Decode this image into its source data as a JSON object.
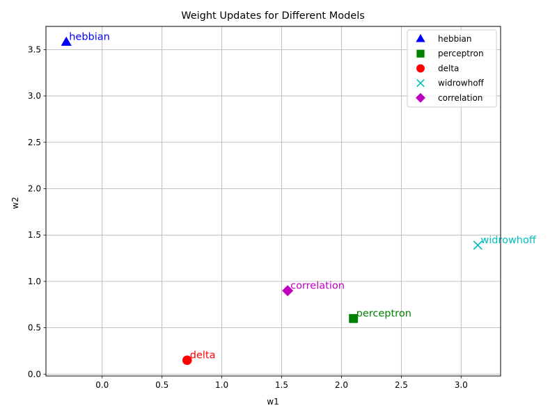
{
  "chart_data": {
    "type": "scatter",
    "title": "Weight Updates for Different Models",
    "xlabel": "w1",
    "ylabel": "w2",
    "xlim": [
      -0.47,
      3.33
    ],
    "ylim": [
      -0.02,
      3.75
    ],
    "xticks": [
      0.0,
      0.5,
      1.0,
      1.5,
      2.0,
      2.5,
      3.0
    ],
    "xtick_labels": [
      "0.0",
      "0.5",
      "1.0",
      "1.5",
      "2.0",
      "2.5",
      "3.0"
    ],
    "yticks": [
      0.0,
      0.5,
      1.0,
      1.5,
      2.0,
      2.5,
      3.0,
      3.5
    ],
    "ytick_labels": [
      "0.0",
      "0.5",
      "1.0",
      "1.5",
      "2.0",
      "2.5",
      "3.0",
      "3.5"
    ],
    "grid": true,
    "legend_position": "top-right",
    "series": [
      {
        "name": "hebbian",
        "x": -0.3,
        "y": 3.58,
        "color": "#0000ff",
        "marker": "triangle",
        "annotation": "hebbian"
      },
      {
        "name": "perceptron",
        "x": 2.1,
        "y": 0.6,
        "color": "#008000",
        "marker": "square",
        "annotation": "perceptron"
      },
      {
        "name": "delta",
        "x": 0.71,
        "y": 0.15,
        "color": "#ff0000",
        "marker": "circle",
        "annotation": "delta"
      },
      {
        "name": "widrowhoff",
        "x": 3.14,
        "y": 1.39,
        "color": "#00bfbf",
        "marker": "x",
        "annotation": "widrowhoff"
      },
      {
        "name": "correlation",
        "x": 1.55,
        "y": 0.9,
        "color": "#bf00bf",
        "marker": "diamond",
        "annotation": "correlation"
      }
    ]
  }
}
